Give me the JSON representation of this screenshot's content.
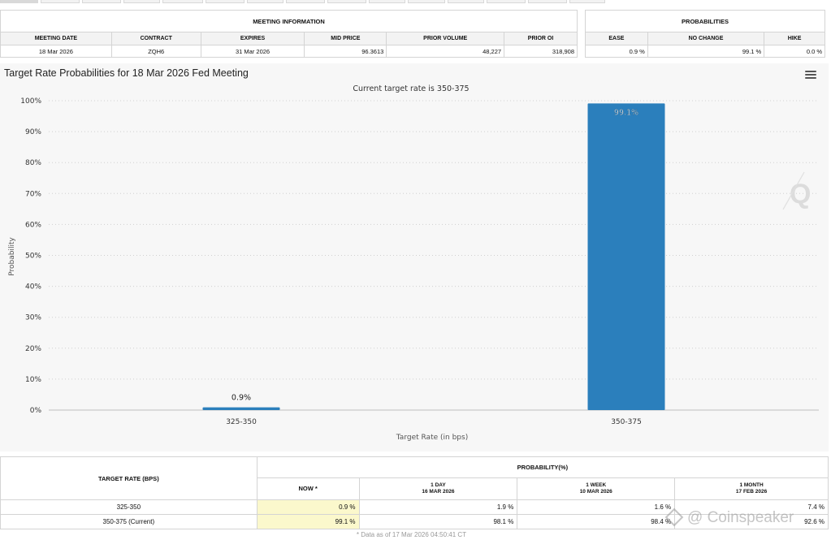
{
  "meeting_info": {
    "group_title": "MEETING INFORMATION",
    "headers": [
      "MEETING DATE",
      "CONTRACT",
      "EXPIRES",
      "MID PRICE",
      "PRIOR VOLUME",
      "PRIOR OI"
    ],
    "row": [
      "18 Mar 2026",
      "ZQH6",
      "31 Mar 2026",
      "96.3613",
      "48,227",
      "318,908"
    ]
  },
  "probabilities": {
    "group_title": "PROBABILITIES",
    "headers": [
      "EASE",
      "NO CHANGE",
      "HIKE"
    ],
    "row": [
      "0.9 %",
      "99.1 %",
      "0.0 %"
    ]
  },
  "chart_data": {
    "type": "bar",
    "title": "Target Rate Probabilities for 18 Mar 2026 Fed Meeting",
    "subtitle": "Current target rate is 350-375",
    "xlabel": "Target Rate (in bps)",
    "ylabel": "Probability",
    "ylim": [
      0,
      100
    ],
    "yticks": [
      0,
      10,
      20,
      30,
      40,
      50,
      60,
      70,
      80,
      90,
      100
    ],
    "ytick_labels": [
      "0%",
      "10%",
      "20%",
      "30%",
      "40%",
      "50%",
      "60%",
      "70%",
      "80%",
      "90%",
      "100%"
    ],
    "categories": [
      "325-350",
      "350-375"
    ],
    "values": [
      0.9,
      99.1
    ],
    "data_labels": [
      "0.9%",
      "99.1%"
    ],
    "bar_color": "#2b7fbc",
    "grid": true
  },
  "prob_table": {
    "header_target_rate": "TARGET RATE (BPS)",
    "header_probability": "PROBABILITY(%)",
    "columns": [
      {
        "line1": "NOW *",
        "line2": ""
      },
      {
        "line1": "1 DAY",
        "line2": "16 MAR 2026"
      },
      {
        "line1": "1 WEEK",
        "line2": "10 MAR 2026"
      },
      {
        "line1": "1 MONTH",
        "line2": "17 FEB 2026"
      }
    ],
    "rows": [
      {
        "rate": "325-350",
        "now": "0.9 %",
        "day": "1.9 %",
        "week": "1.6 %",
        "month": "7.4 %"
      },
      {
        "rate": "350-375 (Current)",
        "now": "99.1 %",
        "day": "98.1 %",
        "week": "98.4 %",
        "month": "92.6 %"
      }
    ]
  },
  "footnote": "* Data as of 17 Mar 2026 04:50:41 CT",
  "watermark": "@ Coinspeaker",
  "colors": {
    "highlight": "#fbf8cc",
    "bar": "#2b7fbc"
  }
}
